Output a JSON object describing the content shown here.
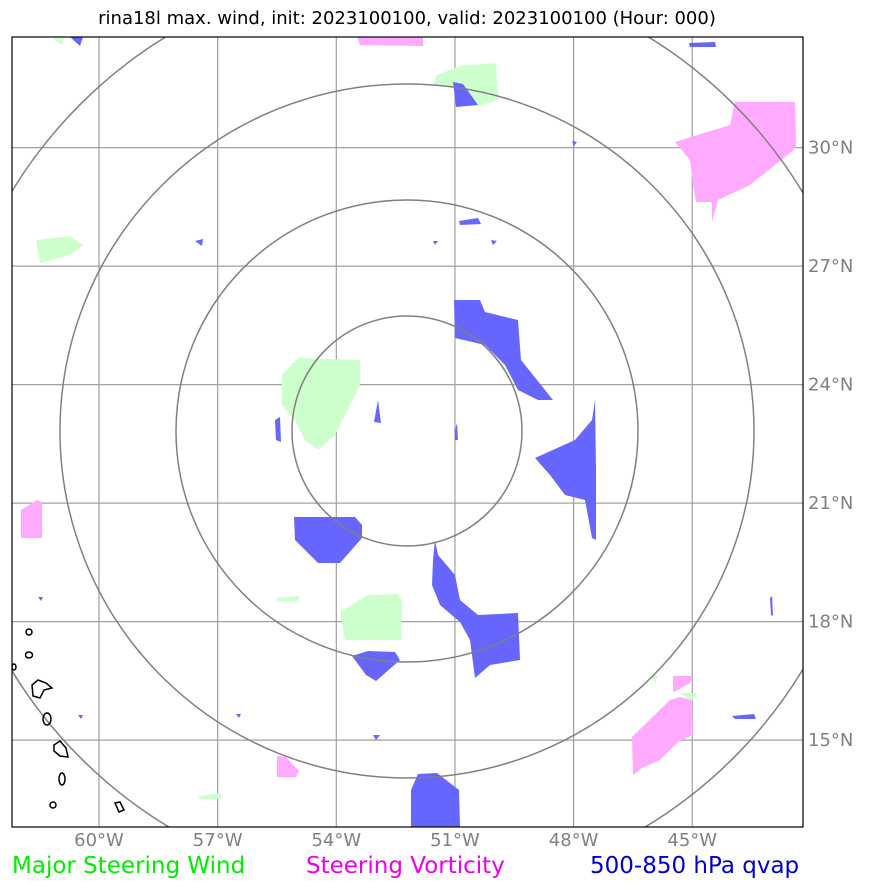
{
  "title": "rina18l max. wind, init: 2023100100, valid: 2023100100 (Hour: 000)",
  "map": {
    "lon_ticks": [
      "60°W",
      "57°W",
      "54°W",
      "51°W",
      "48°W",
      "45°W"
    ],
    "lat_ticks": [
      "30°N",
      "27°N",
      "24°N",
      "21°N",
      "18°N",
      "15°N"
    ],
    "lon_values": [
      -60,
      -57,
      -54,
      -51,
      -48,
      -45
    ],
    "lat_values": [
      30,
      27,
      24,
      21,
      18,
      15
    ],
    "extent": {
      "lon": [
        -62.2,
        -42.2
      ],
      "lat": [
        12.8,
        32.8
      ]
    },
    "range_rings_center": {
      "lon": -52.3,
      "lat": 22.8
    },
    "colors": {
      "steering_wind": "#ccffcc",
      "steering_vorticity": "#ffaaff",
      "qvap": "#6666ff",
      "ring": "#808080",
      "grid": "#a0a0a0"
    }
  },
  "legend": {
    "wind": {
      "label": "Major Steering Wind",
      "color": "#00ee00"
    },
    "vorticity": {
      "label": "Steering Vorticity",
      "color": "#ee00ee"
    },
    "qvap": {
      "label": "500-850 hPa qvap",
      "color": "#0000cc"
    }
  }
}
